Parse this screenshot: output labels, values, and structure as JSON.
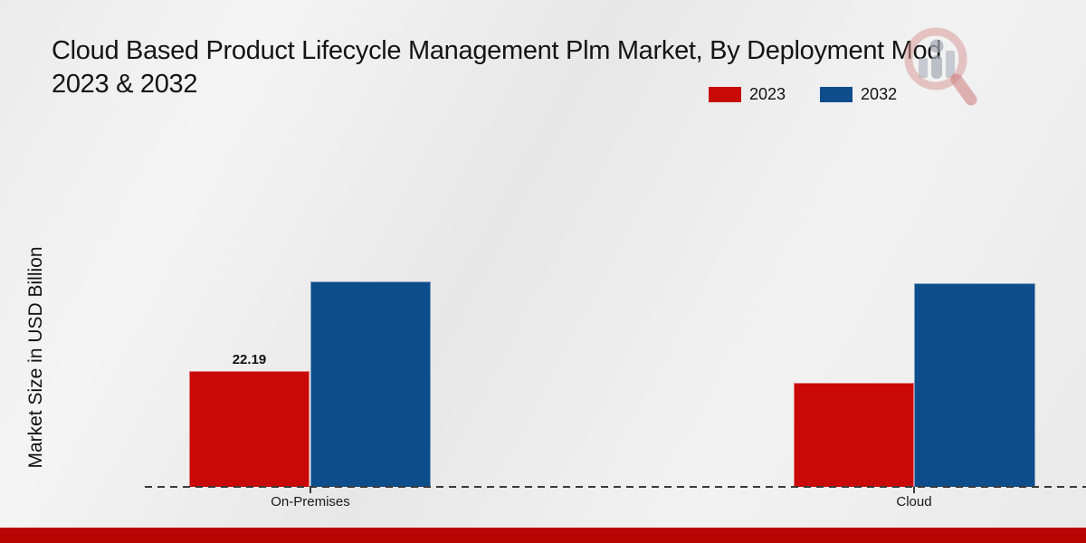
{
  "chart_data": {
    "type": "bar",
    "title_line1": "Cloud Based Product Lifecycle Management Plm Market, By Deployment Mod",
    "title_line2": "2023 & 2032",
    "ylabel": "Market Size in USD Billion",
    "categories": [
      "On-Premises",
      "Cloud"
    ],
    "series": [
      {
        "name": "2023",
        "color": "#c90808",
        "values": [
          22.19,
          19.9
        ],
        "value_labels": [
          "22.19",
          ""
        ]
      },
      {
        "name": "2032",
        "color": "#0e4d8c",
        "values": [
          39.3,
          39.0
        ],
        "value_labels": [
          "",
          ""
        ]
      }
    ],
    "ylim": [
      0,
      45
    ],
    "grid": false,
    "legend_position": "top-center",
    "baseline_style": "dashed",
    "value_label_shown": "22.19"
  },
  "colors": {
    "footer_strip": "#b90404",
    "baseline": "#3a3a3a",
    "logo_ring": "#d99a9a",
    "logo_grey": "#a3a8b2"
  },
  "logo": {
    "name": "magnifier-bar-chart-logo"
  }
}
